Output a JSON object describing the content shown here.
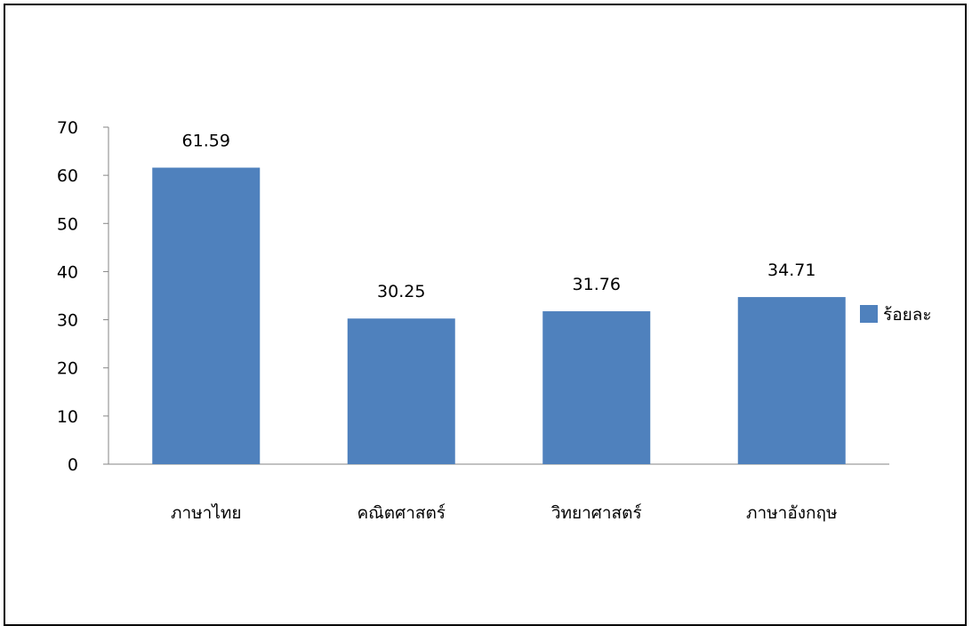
{
  "chart_data": {
    "type": "bar",
    "categories": [
      "ภาษาไทย",
      "คณิตศาสตร์",
      "วิทยาศาสตร์",
      "ภาษาอังกฤษ"
    ],
    "series": [
      {
        "name": "ร้อยละ",
        "values": [
          61.59,
          30.25,
          31.76,
          34.71
        ],
        "color": "#4f81bd"
      }
    ],
    "data_labels": [
      "61.59",
      "30.25",
      "31.76",
      "34.71"
    ],
    "ylim": [
      0,
      70
    ],
    "yticks": [
      0,
      10,
      20,
      30,
      40,
      50,
      60,
      70
    ],
    "grid": false,
    "legend_position": "right"
  }
}
